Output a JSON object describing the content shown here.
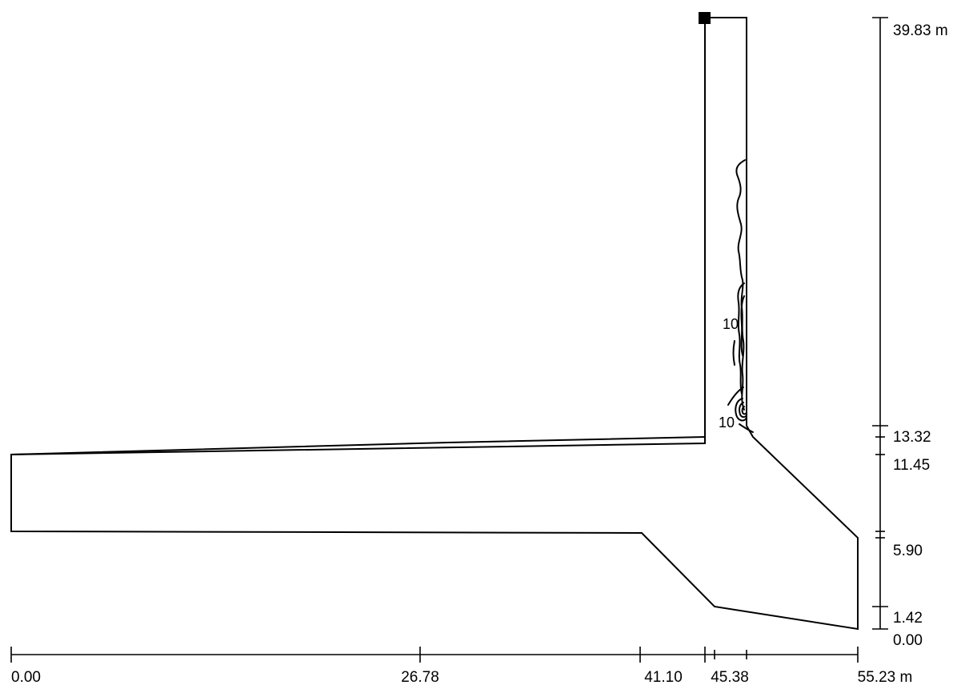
{
  "diagram": {
    "horizontal_dimension": {
      "unit": "m",
      "ticks": [
        {
          "value": "0.00",
          "label": "0.00"
        },
        {
          "value": "26.78",
          "label": "26.78"
        },
        {
          "value": "41.10",
          "label": "41.10"
        },
        {
          "value": "45.38",
          "label": "45.38"
        },
        {
          "value": "55.23",
          "label": "55.23 m"
        }
      ]
    },
    "vertical_dimension": {
      "unit": "m",
      "ticks": [
        {
          "value": "39.83",
          "label": "39.83 m"
        },
        {
          "value": "13.32",
          "label": "13.32"
        },
        {
          "value": "11.45",
          "label": "11.45"
        },
        {
          "value": "5.90",
          "label": "5.90"
        },
        {
          "value": "1.42",
          "label": "1.42"
        },
        {
          "value": "0.00",
          "label": "0.00"
        }
      ]
    },
    "contour_labels": [
      "10",
      "10"
    ],
    "colors": {
      "line": "#000000",
      "background": "#ffffff"
    }
  }
}
